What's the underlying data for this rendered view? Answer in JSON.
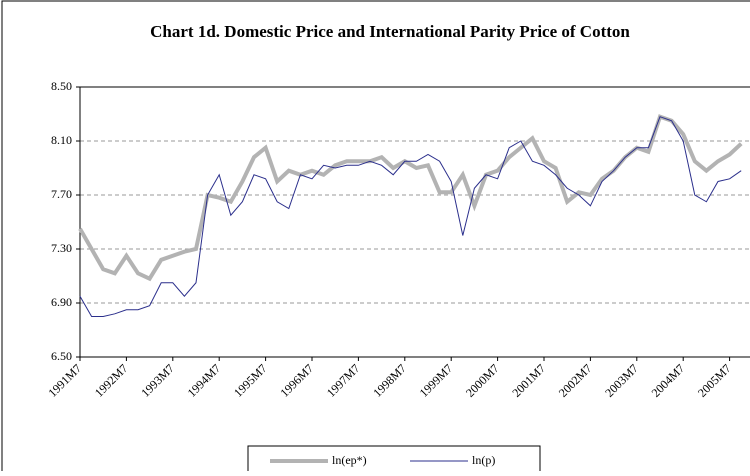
{
  "chart_data": {
    "type": "line",
    "title": "Chart 1d. Domestic Price and International Parity Price of Cotton",
    "categories": [
      "1991M7",
      null,
      null,
      null,
      "1992M7",
      null,
      null,
      null,
      "1993M7",
      null,
      null,
      null,
      "1994M7",
      null,
      null,
      null,
      "1995M7",
      null,
      null,
      null,
      "1996M7",
      null,
      null,
      null,
      "1997M7",
      null,
      null,
      null,
      "1998M7",
      null,
      null,
      null,
      "1999M7",
      null,
      null,
      null,
      "2000M7",
      null,
      null,
      null,
      "2001M7",
      null,
      null,
      null,
      "2002M7",
      null,
      null,
      null,
      "2003M7",
      null,
      null,
      null,
      "2004M7",
      null,
      null,
      null,
      "2005M7",
      null
    ],
    "series": [
      {
        "name": "ln(ep*)",
        "color": "#b3b3b3",
        "values": [
          7.45,
          7.3,
          7.15,
          7.12,
          7.25,
          7.12,
          7.08,
          7.22,
          7.25,
          7.28,
          7.3,
          7.7,
          7.68,
          7.65,
          7.8,
          7.98,
          8.05,
          7.8,
          7.88,
          7.85,
          7.88,
          7.85,
          7.92,
          7.95,
          7.95,
          7.95,
          7.98,
          7.9,
          7.95,
          7.9,
          7.92,
          7.72,
          7.72,
          7.85,
          7.62,
          7.85,
          7.88,
          7.98,
          8.05,
          8.12,
          7.95,
          7.9,
          7.65,
          7.72,
          7.7,
          7.82,
          7.88,
          7.98,
          8.05,
          8.02,
          8.28,
          8.25,
          8.15,
          7.95,
          7.88,
          7.95,
          8.0,
          8.08
        ]
      },
      {
        "name": "ln(p)",
        "color": "#2b2f8c",
        "values": [
          6.95,
          6.8,
          6.8,
          6.82,
          6.85,
          6.85,
          6.88,
          7.05,
          7.05,
          6.95,
          7.05,
          7.7,
          7.85,
          7.55,
          7.65,
          7.85,
          7.82,
          7.65,
          7.6,
          7.85,
          7.82,
          7.92,
          7.9,
          7.92,
          7.92,
          7.95,
          7.92,
          7.85,
          7.95,
          7.95,
          8.0,
          7.95,
          7.8,
          7.4,
          7.75,
          7.85,
          7.82,
          8.05,
          8.1,
          7.95,
          7.92,
          7.85,
          7.75,
          7.7,
          7.62,
          7.8,
          7.88,
          7.98,
          8.05,
          8.05,
          8.28,
          8.25,
          8.1,
          7.7,
          7.65,
          7.8,
          7.82,
          7.88
        ]
      }
    ],
    "ylim": [
      6.5,
      8.5
    ],
    "yticks": [
      {
        "value": 6.5,
        "label": "6.50"
      },
      {
        "value": 6.9,
        "label": "6.90"
      },
      {
        "value": 7.3,
        "label": "7.30"
      },
      {
        "value": 7.7,
        "label": "7.70"
      },
      {
        "value": 8.1,
        "label": "8.10"
      },
      {
        "value": 8.5,
        "label": "8.50"
      }
    ],
    "grid": true
  }
}
